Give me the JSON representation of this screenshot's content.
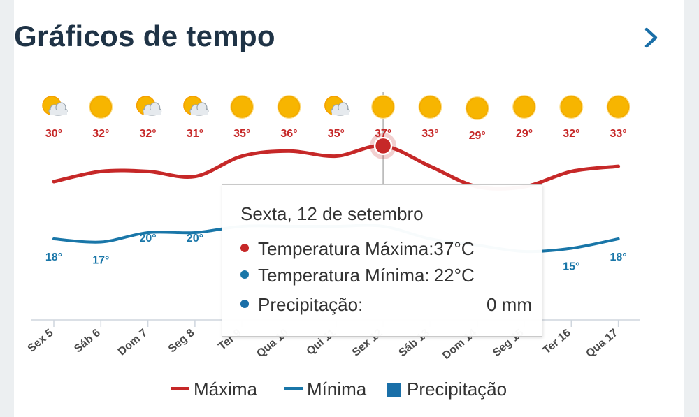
{
  "header": {
    "title": "Gráficos de tempo",
    "chevron_icon": "chevron-right-icon"
  },
  "colors": {
    "max": "#c62828",
    "min": "#1976a8",
    "precip": "#1a6fa8",
    "title": "#1f3346",
    "sun": "#f7b500"
  },
  "forecast": {
    "days": [
      "Sex 5",
      "Sáb 6",
      "Dom 7",
      "Seg 8",
      "Ter 9",
      "Qua 10",
      "Qui 11",
      "Sex 12",
      "Sáb 13",
      "Dom 14",
      "Seg 15",
      "Ter 16",
      "Qua 17"
    ],
    "icons": [
      "partly-cloudy-icon",
      "sun-icon",
      "partly-cloudy-icon",
      "partly-cloudy-icon",
      "sun-icon",
      "sun-icon",
      "partly-cloudy-icon",
      "sun-icon",
      "sun-icon",
      "sun-icon",
      "sun-icon",
      "sun-icon",
      "sun-icon"
    ],
    "max_labels": [
      "30°",
      "32°",
      "32°",
      "31°",
      "35°",
      "36°",
      "35°",
      "37°",
      "33°",
      "29°",
      "29°",
      "32°",
      "33°"
    ],
    "min_labels": [
      "18°",
      "17°",
      "20°",
      "20°",
      "",
      "",
      "",
      "",
      "",
      "",
      "",
      "15°",
      "18°"
    ]
  },
  "chart_data": {
    "type": "line",
    "x": [
      "Sex 5",
      "Sáb 6",
      "Dom 7",
      "Seg 8",
      "Ter 9",
      "Qua 10",
      "Qui 11",
      "Sex 12",
      "Sáb 13",
      "Dom 14",
      "Seg 15",
      "Ter 16",
      "Qua 17"
    ],
    "series": [
      {
        "name": "Máxima",
        "values": [
          30,
          32,
          32,
          31,
          35,
          36,
          35,
          37,
          33,
          29,
          29,
          32,
          33
        ]
      },
      {
        "name": "Mínima",
        "values": [
          18,
          17,
          20,
          20,
          22,
          22,
          22,
          22,
          18,
          16,
          14,
          15,
          18
        ]
      },
      {
        "name": "Precipitação",
        "values": [
          0,
          0,
          0,
          0,
          0,
          0,
          0,
          0,
          0,
          0,
          0,
          0,
          0
        ]
      }
    ],
    "highlight_index": 7,
    "grid": false,
    "legend_position": "bottom"
  },
  "tooltip": {
    "date": "Sexta, 12 de setembro",
    "rows": [
      {
        "label": "Temperatura Máxima:",
        "value": "37°C"
      },
      {
        "label": "Temperatura Mínima:",
        "value": "22°C"
      },
      {
        "label": "Precipitação:",
        "value": "0 mm"
      }
    ]
  },
  "legend": {
    "max": "Máxima",
    "min": "Mínima",
    "precip": "Precipitação"
  }
}
